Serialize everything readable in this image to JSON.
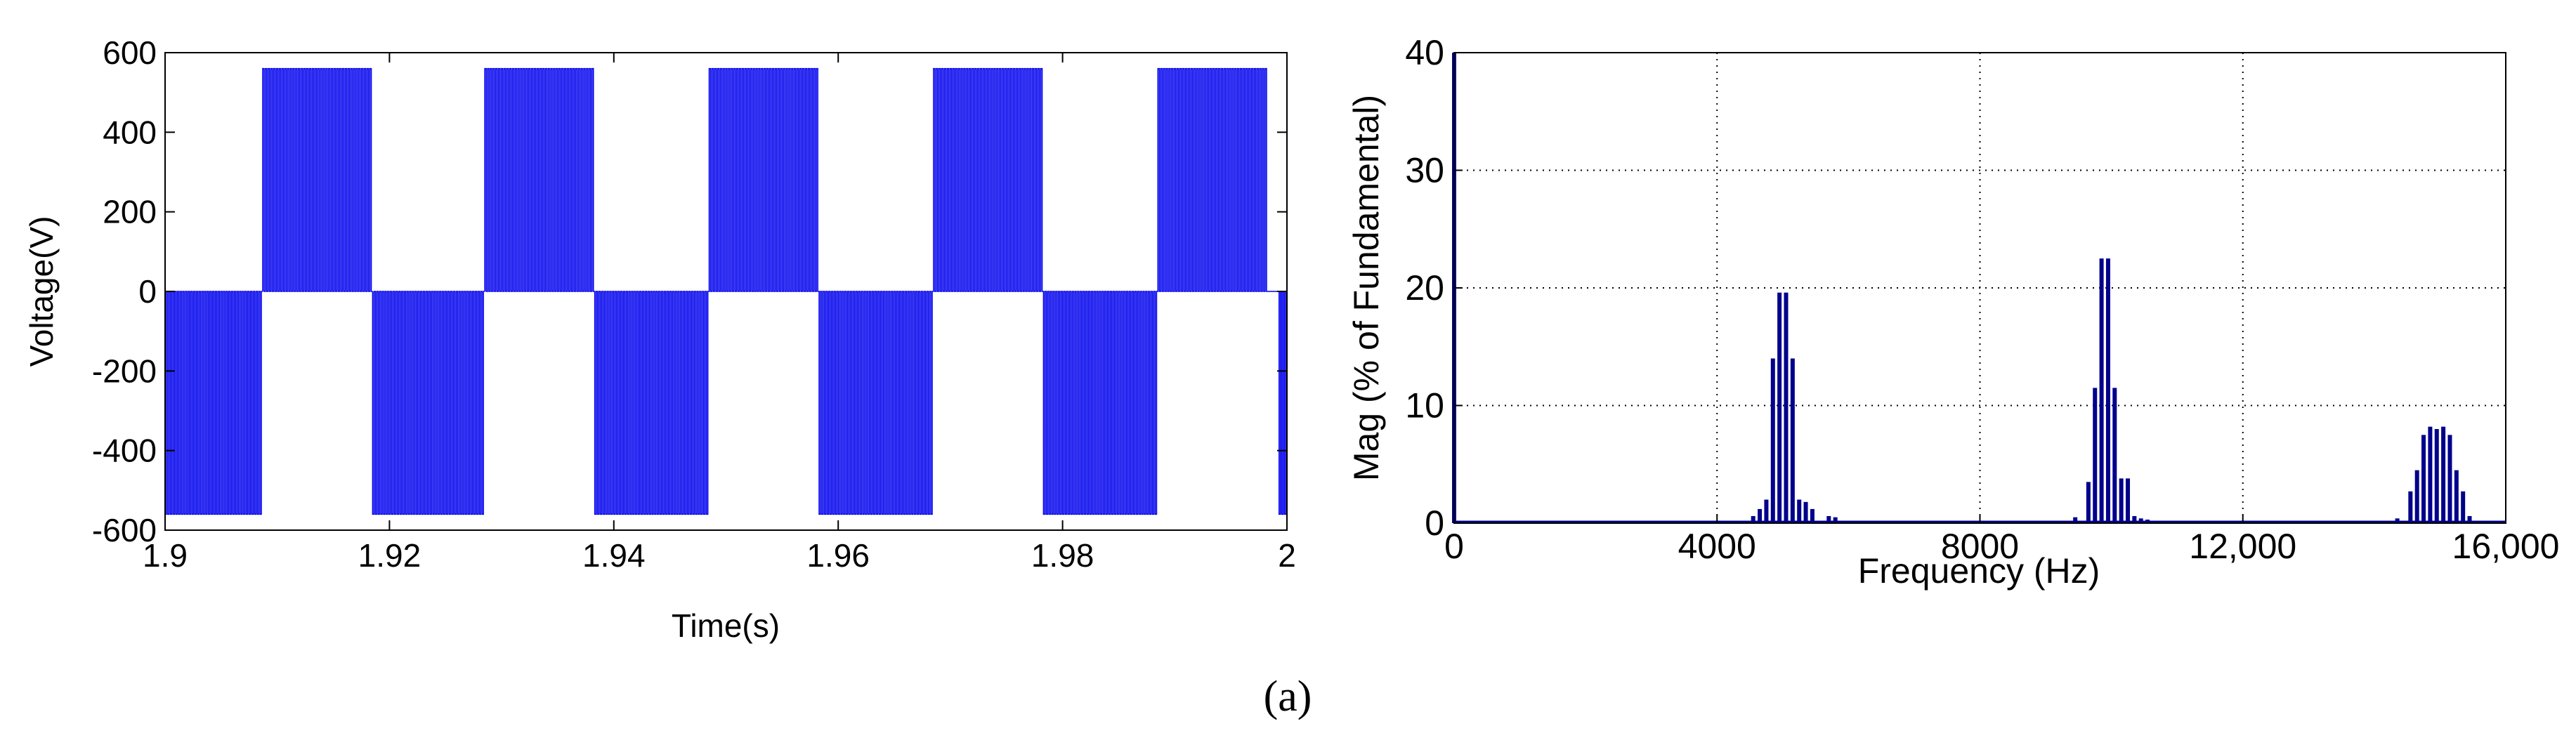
{
  "caption": "(a)",
  "chart_data": [
    {
      "type": "line",
      "title": "",
      "xlabel": "Time(s)",
      "ylabel": "Voltage(V)",
      "xlim": [
        1.9,
        2.0
      ],
      "ylim": [
        -600,
        600
      ],
      "x_ticks": [
        "1.9",
        "1.92",
        "1.94",
        "1.96",
        "1.98",
        "2"
      ],
      "y_ticks": [
        "600",
        "400",
        "200",
        "0",
        "-200",
        "-400",
        "-600"
      ],
      "grid": false,
      "series": [
        {
          "color": "#0000ee",
          "form": "unipolar PWM square-wave bursts, 50 Hz fundamental",
          "amplitude": 560,
          "pulse_count_per_half_cycle": 40,
          "segments": [
            {
              "x": [
                1.9,
                1.9087
              ],
              "level": -560
            },
            {
              "x": [
                1.9087,
                1.9185
              ],
              "level": 560
            },
            {
              "x": [
                1.9185,
                1.9285
              ],
              "level": -560
            },
            {
              "x": [
                1.9285,
                1.9383
              ],
              "level": 560
            },
            {
              "x": [
                1.9383,
                1.9485
              ],
              "level": -560
            },
            {
              "x": [
                1.9485,
                1.9583
              ],
              "level": 560
            },
            {
              "x": [
                1.9583,
                1.9685
              ],
              "level": -560
            },
            {
              "x": [
                1.9685,
                1.9783
              ],
              "level": 560
            },
            {
              "x": [
                1.9783,
                1.9885
              ],
              "level": -560
            },
            {
              "x": [
                1.9885,
                1.9983
              ],
              "level": 560
            },
            {
              "x": [
                1.9993,
                2.0
              ],
              "level": -560
            }
          ]
        }
      ]
    },
    {
      "type": "bar",
      "title": "",
      "xlabel": "Frequency (Hz)",
      "ylabel": "Mag (% of Fundamental)",
      "xlim": [
        0,
        16000
      ],
      "ylim": [
        0,
        40
      ],
      "x_ticks": [
        "0",
        "4000",
        "8000",
        "12,000",
        "16,000"
      ],
      "y_ticks": [
        "40",
        "30",
        "20",
        "10",
        "0"
      ],
      "grid": true,
      "series": [
        {
          "color": "#00008b",
          "x": [
            0,
            4550,
            4650,
            4750,
            4850,
            4950,
            5050,
            5150,
            5250,
            5350,
            5450,
            5700,
            5800,
            9450,
            9650,
            9750,
            9850,
            9950,
            10050,
            10150,
            10250,
            10350,
            10450,
            10550,
            14350,
            14550,
            14650,
            14750,
            14850,
            14950,
            15050,
            15150,
            15250,
            15350,
            15450
          ],
          "y": [
            40,
            0.6,
            1.2,
            2,
            14,
            19.6,
            19.6,
            14,
            2,
            1.8,
            1.2,
            0.6,
            0.5,
            0.5,
            3.5,
            11.5,
            22.5,
            22.5,
            11.5,
            3.8,
            3.8,
            0.6,
            0.4,
            0.3,
            0.4,
            2.7,
            4.5,
            7.5,
            8.2,
            8,
            8.2,
            7.5,
            4.5,
            2.7,
            0.6
          ]
        }
      ]
    }
  ]
}
